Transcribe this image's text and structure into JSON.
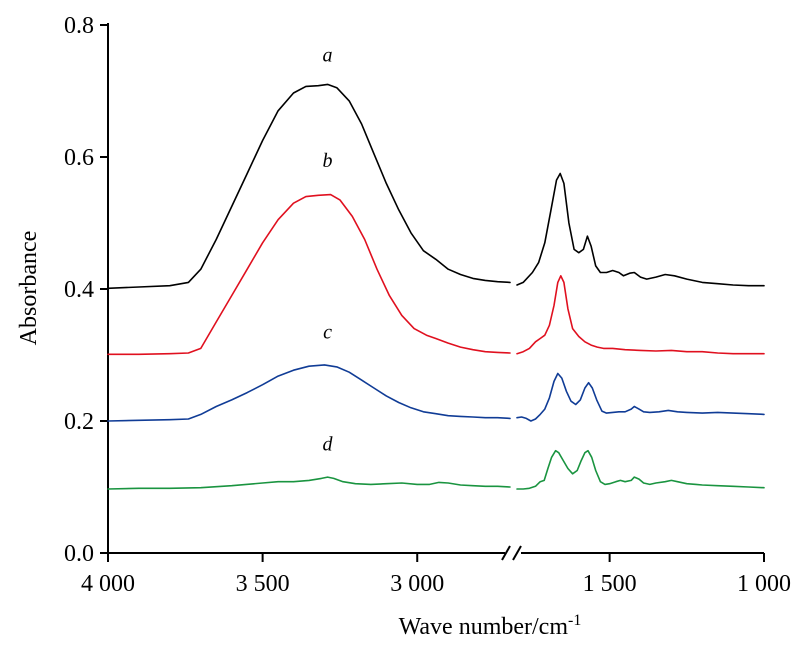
{
  "chart_data": {
    "type": "line",
    "title": "",
    "xlabel": "Wave number/cm",
    "xlabel_sup": "-1",
    "ylabel": "Absorbance",
    "ylim": [
      0,
      0.8
    ],
    "y_ticks": [
      {
        "value": 0.0,
        "label": "0.0"
      },
      {
        "value": 0.2,
        "label": "0.2"
      },
      {
        "value": 0.4,
        "label": "0.4"
      },
      {
        "value": 0.6,
        "label": "0.6"
      },
      {
        "value": 0.8,
        "label": "0.8"
      }
    ],
    "x_axis_reversed": true,
    "x_axis_broken": true,
    "x_segments": [
      {
        "xlim": [
          4000,
          2700
        ]
      },
      {
        "xlim": [
          1800,
          1000
        ]
      }
    ],
    "x_ticks": [
      {
        "value": 4000,
        "label": "4 000"
      },
      {
        "value": 3500,
        "label": "3 500"
      },
      {
        "value": 3000,
        "label": "3 000"
      },
      {
        "value": 1500,
        "label": "1 500"
      },
      {
        "value": 1000,
        "label": "1 000"
      }
    ],
    "series": [
      {
        "name": "a",
        "color": "#000000",
        "points": [
          [
            4000,
            0.401
          ],
          [
            3900,
            0.403
          ],
          [
            3800,
            0.405
          ],
          [
            3740,
            0.41
          ],
          [
            3700,
            0.43
          ],
          [
            3650,
            0.475
          ],
          [
            3600,
            0.525
          ],
          [
            3550,
            0.575
          ],
          [
            3500,
            0.625
          ],
          [
            3450,
            0.67
          ],
          [
            3400,
            0.697
          ],
          [
            3360,
            0.707
          ],
          [
            3320,
            0.708
          ],
          [
            3290,
            0.71
          ],
          [
            3260,
            0.705
          ],
          [
            3220,
            0.685
          ],
          [
            3180,
            0.65
          ],
          [
            3140,
            0.605
          ],
          [
            3100,
            0.56
          ],
          [
            3060,
            0.52
          ],
          [
            3020,
            0.485
          ],
          [
            2980,
            0.458
          ],
          [
            2940,
            0.445
          ],
          [
            2900,
            0.43
          ],
          [
            2860,
            0.422
          ],
          [
            2820,
            0.416
          ],
          [
            2780,
            0.413
          ],
          [
            2740,
            0.411
          ],
          [
            2700,
            0.41
          ],
          [
            1800,
            0.406
          ],
          [
            1780,
            0.41
          ],
          [
            1750,
            0.425
          ],
          [
            1730,
            0.44
          ],
          [
            1710,
            0.47
          ],
          [
            1690,
            0.52
          ],
          [
            1672,
            0.565
          ],
          [
            1660,
            0.575
          ],
          [
            1648,
            0.56
          ],
          [
            1632,
            0.5
          ],
          [
            1615,
            0.46
          ],
          [
            1600,
            0.455
          ],
          [
            1585,
            0.46
          ],
          [
            1572,
            0.48
          ],
          [
            1560,
            0.465
          ],
          [
            1545,
            0.435
          ],
          [
            1530,
            0.425
          ],
          [
            1510,
            0.425
          ],
          [
            1490,
            0.428
          ],
          [
            1470,
            0.425
          ],
          [
            1455,
            0.42
          ],
          [
            1435,
            0.424
          ],
          [
            1420,
            0.425
          ],
          [
            1400,
            0.418
          ],
          [
            1380,
            0.415
          ],
          [
            1350,
            0.418
          ],
          [
            1320,
            0.422
          ],
          [
            1290,
            0.42
          ],
          [
            1250,
            0.415
          ],
          [
            1200,
            0.41
          ],
          [
            1150,
            0.408
          ],
          [
            1100,
            0.406
          ],
          [
            1050,
            0.405
          ],
          [
            1000,
            0.405
          ]
        ]
      },
      {
        "name": "b",
        "color": "#e0101f",
        "points": [
          [
            4000,
            0.301
          ],
          [
            3900,
            0.301
          ],
          [
            3800,
            0.302
          ],
          [
            3740,
            0.303
          ],
          [
            3700,
            0.31
          ],
          [
            3650,
            0.35
          ],
          [
            3600,
            0.39
          ],
          [
            3550,
            0.43
          ],
          [
            3500,
            0.47
          ],
          [
            3450,
            0.505
          ],
          [
            3400,
            0.53
          ],
          [
            3360,
            0.54
          ],
          [
            3320,
            0.542
          ],
          [
            3280,
            0.543
          ],
          [
            3250,
            0.535
          ],
          [
            3210,
            0.51
          ],
          [
            3170,
            0.475
          ],
          [
            3130,
            0.43
          ],
          [
            3090,
            0.39
          ],
          [
            3050,
            0.36
          ],
          [
            3010,
            0.34
          ],
          [
            2970,
            0.33
          ],
          [
            2940,
            0.325
          ],
          [
            2900,
            0.318
          ],
          [
            2860,
            0.312
          ],
          [
            2820,
            0.308
          ],
          [
            2780,
            0.305
          ],
          [
            2740,
            0.304
          ],
          [
            2700,
            0.303
          ],
          [
            1800,
            0.302
          ],
          [
            1780,
            0.305
          ],
          [
            1760,
            0.31
          ],
          [
            1740,
            0.32
          ],
          [
            1725,
            0.325
          ],
          [
            1710,
            0.33
          ],
          [
            1695,
            0.345
          ],
          [
            1680,
            0.375
          ],
          [
            1668,
            0.41
          ],
          [
            1658,
            0.42
          ],
          [
            1648,
            0.41
          ],
          [
            1635,
            0.37
          ],
          [
            1620,
            0.34
          ],
          [
            1600,
            0.328
          ],
          [
            1580,
            0.32
          ],
          [
            1560,
            0.315
          ],
          [
            1540,
            0.312
          ],
          [
            1520,
            0.31
          ],
          [
            1490,
            0.31
          ],
          [
            1450,
            0.308
          ],
          [
            1400,
            0.307
          ],
          [
            1350,
            0.306
          ],
          [
            1300,
            0.307
          ],
          [
            1250,
            0.305
          ],
          [
            1200,
            0.305
          ],
          [
            1150,
            0.303
          ],
          [
            1100,
            0.302
          ],
          [
            1050,
            0.302
          ],
          [
            1000,
            0.302
          ]
        ]
      },
      {
        "name": "c",
        "color": "#103c96",
        "points": [
          [
            4000,
            0.2
          ],
          [
            3900,
            0.201
          ],
          [
            3800,
            0.202
          ],
          [
            3740,
            0.203
          ],
          [
            3700,
            0.21
          ],
          [
            3650,
            0.222
          ],
          [
            3600,
            0.232
          ],
          [
            3550,
            0.243
          ],
          [
            3500,
            0.255
          ],
          [
            3450,
            0.268
          ],
          [
            3400,
            0.277
          ],
          [
            3350,
            0.283
          ],
          [
            3300,
            0.285
          ],
          [
            3260,
            0.282
          ],
          [
            3220,
            0.274
          ],
          [
            3180,
            0.262
          ],
          [
            3140,
            0.25
          ],
          [
            3100,
            0.238
          ],
          [
            3060,
            0.228
          ],
          [
            3020,
            0.22
          ],
          [
            2980,
            0.214
          ],
          [
            2940,
            0.211
          ],
          [
            2900,
            0.208
          ],
          [
            2860,
            0.207
          ],
          [
            2820,
            0.206
          ],
          [
            2780,
            0.205
          ],
          [
            2740,
            0.205
          ],
          [
            2700,
            0.204
          ],
          [
            1800,
            0.205
          ],
          [
            1785,
            0.206
          ],
          [
            1770,
            0.204
          ],
          [
            1755,
            0.2
          ],
          [
            1740,
            0.203
          ],
          [
            1725,
            0.21
          ],
          [
            1710,
            0.218
          ],
          [
            1695,
            0.235
          ],
          [
            1680,
            0.26
          ],
          [
            1668,
            0.272
          ],
          [
            1655,
            0.265
          ],
          [
            1640,
            0.245
          ],
          [
            1625,
            0.23
          ],
          [
            1610,
            0.225
          ],
          [
            1595,
            0.232
          ],
          [
            1580,
            0.25
          ],
          [
            1568,
            0.258
          ],
          [
            1556,
            0.25
          ],
          [
            1542,
            0.232
          ],
          [
            1525,
            0.215
          ],
          [
            1510,
            0.212
          ],
          [
            1490,
            0.213
          ],
          [
            1470,
            0.214
          ],
          [
            1450,
            0.214
          ],
          [
            1430,
            0.218
          ],
          [
            1420,
            0.222
          ],
          [
            1405,
            0.218
          ],
          [
            1390,
            0.214
          ],
          [
            1370,
            0.213
          ],
          [
            1340,
            0.214
          ],
          [
            1310,
            0.216
          ],
          [
            1280,
            0.214
          ],
          [
            1250,
            0.213
          ],
          [
            1200,
            0.212
          ],
          [
            1150,
            0.213
          ],
          [
            1100,
            0.212
          ],
          [
            1050,
            0.211
          ],
          [
            1000,
            0.21
          ]
        ]
      },
      {
        "name": "d",
        "color": "#1a9440",
        "points": [
          [
            4000,
            0.097
          ],
          [
            3900,
            0.098
          ],
          [
            3800,
            0.098
          ],
          [
            3700,
            0.099
          ],
          [
            3600,
            0.102
          ],
          [
            3500,
            0.106
          ],
          [
            3450,
            0.108
          ],
          [
            3400,
            0.108
          ],
          [
            3350,
            0.11
          ],
          [
            3310,
            0.113
          ],
          [
            3290,
            0.115
          ],
          [
            3270,
            0.113
          ],
          [
            3240,
            0.108
          ],
          [
            3200,
            0.105
          ],
          [
            3150,
            0.104
          ],
          [
            3100,
            0.105
          ],
          [
            3050,
            0.106
          ],
          [
            3000,
            0.104
          ],
          [
            2960,
            0.104
          ],
          [
            2930,
            0.107
          ],
          [
            2900,
            0.106
          ],
          [
            2860,
            0.103
          ],
          [
            2820,
            0.102
          ],
          [
            2780,
            0.101
          ],
          [
            2740,
            0.101
          ],
          [
            2700,
            0.1
          ],
          [
            1800,
            0.097
          ],
          [
            1780,
            0.097
          ],
          [
            1760,
            0.098
          ],
          [
            1740,
            0.101
          ],
          [
            1725,
            0.108
          ],
          [
            1712,
            0.11
          ],
          [
            1700,
            0.128
          ],
          [
            1688,
            0.145
          ],
          [
            1675,
            0.155
          ],
          [
            1665,
            0.152
          ],
          [
            1650,
            0.14
          ],
          [
            1635,
            0.128
          ],
          [
            1620,
            0.12
          ],
          [
            1605,
            0.125
          ],
          [
            1592,
            0.14
          ],
          [
            1580,
            0.152
          ],
          [
            1570,
            0.155
          ],
          [
            1558,
            0.145
          ],
          [
            1545,
            0.125
          ],
          [
            1530,
            0.108
          ],
          [
            1515,
            0.104
          ],
          [
            1500,
            0.105
          ],
          [
            1480,
            0.108
          ],
          [
            1465,
            0.11
          ],
          [
            1450,
            0.108
          ],
          [
            1430,
            0.11
          ],
          [
            1420,
            0.115
          ],
          [
            1405,
            0.112
          ],
          [
            1390,
            0.106
          ],
          [
            1370,
            0.104
          ],
          [
            1350,
            0.106
          ],
          [
            1320,
            0.108
          ],
          [
            1300,
            0.11
          ],
          [
            1280,
            0.108
          ],
          [
            1250,
            0.105
          ],
          [
            1220,
            0.104
          ],
          [
            1200,
            0.103
          ],
          [
            1150,
            0.102
          ],
          [
            1100,
            0.101
          ],
          [
            1050,
            0.1
          ],
          [
            1000,
            0.099
          ]
        ]
      }
    ],
    "series_label_anchors": [
      {
        "name": "a",
        "x": 3290,
        "y": 0.745
      },
      {
        "name": "b",
        "x": 3290,
        "y": 0.585
      },
      {
        "name": "c",
        "x": 3290,
        "y": 0.325
      },
      {
        "name": "d",
        "x": 3290,
        "y": 0.155
      }
    ]
  }
}
